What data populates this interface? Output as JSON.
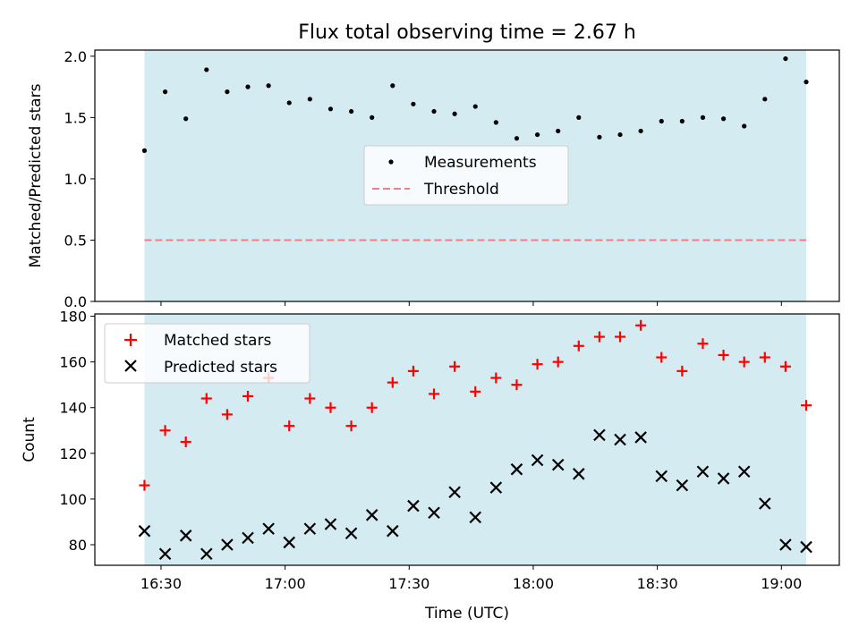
{
  "chart_data": {
    "type": "scatter",
    "title": "Flux total observing time = 2.67 h",
    "xlabel": "Time (UTC)",
    "x_ticks": [
      "16:30",
      "17:00",
      "17:30",
      "18:00",
      "18:30",
      "19:00"
    ],
    "colors": {
      "shade": "#d4ebf2",
      "measurements": "#000000",
      "threshold": "#f08080",
      "matched": "#ff0000",
      "predicted": "#000000"
    },
    "top": {
      "ylabel": "Matched/Predicted stars",
      "ylim": [
        0.0,
        2.05
      ],
      "y_ticks": [
        "0.0",
        "0.5",
        "1.0",
        "1.5",
        "2.0"
      ],
      "legend": [
        "Measurements",
        "Threshold"
      ],
      "threshold": 0.5
    },
    "bottom": {
      "ylabel": "Count",
      "ylim": [
        71,
        181
      ],
      "y_ticks": [
        "80",
        "100",
        "120",
        "140",
        "160",
        "180"
      ],
      "legend": [
        "Matched stars",
        "Predicted stars"
      ]
    },
    "x": [
      "16:26",
      "16:31",
      "16:36",
      "16:41",
      "16:46",
      "16:51",
      "16:56",
      "17:01",
      "17:06",
      "17:11",
      "17:16",
      "17:21",
      "17:26",
      "17:31",
      "17:36",
      "17:41",
      "17:46",
      "17:51",
      "17:56",
      "18:01",
      "18:06",
      "18:11",
      "18:16",
      "18:21",
      "18:26",
      "18:31",
      "18:36",
      "18:41",
      "18:46",
      "18:51",
      "18:56",
      "19:01",
      "19:06"
    ],
    "series": [
      {
        "name": "Matched stars",
        "values": [
          106,
          130,
          125,
          144,
          137,
          145,
          153,
          132,
          144,
          140,
          132,
          140,
          151,
          156,
          146,
          158,
          147,
          153,
          150,
          159,
          160,
          167,
          171,
          171,
          176,
          162,
          156,
          168,
          163,
          160,
          162,
          158,
          141
        ]
      },
      {
        "name": "Predicted stars",
        "values": [
          86,
          76,
          84,
          76,
          80,
          83,
          87,
          81,
          87,
          89,
          85,
          93,
          86,
          97,
          94,
          103,
          92,
          105,
          113,
          117,
          115,
          111,
          128,
          126,
          127,
          110,
          106,
          112,
          109,
          112,
          98,
          80,
          79
        ]
      },
      {
        "name": "Measurements",
        "values": [
          1.23,
          1.71,
          1.49,
          1.89,
          1.71,
          1.75,
          1.76,
          1.62,
          1.65,
          1.57,
          1.55,
          1.5,
          1.76,
          1.61,
          1.55,
          1.53,
          1.59,
          1.46,
          1.33,
          1.36,
          1.39,
          1.5,
          1.34,
          1.36,
          1.39,
          1.47,
          1.47,
          1.5,
          1.49,
          1.43,
          1.65,
          1.98,
          1.79
        ]
      }
    ]
  }
}
